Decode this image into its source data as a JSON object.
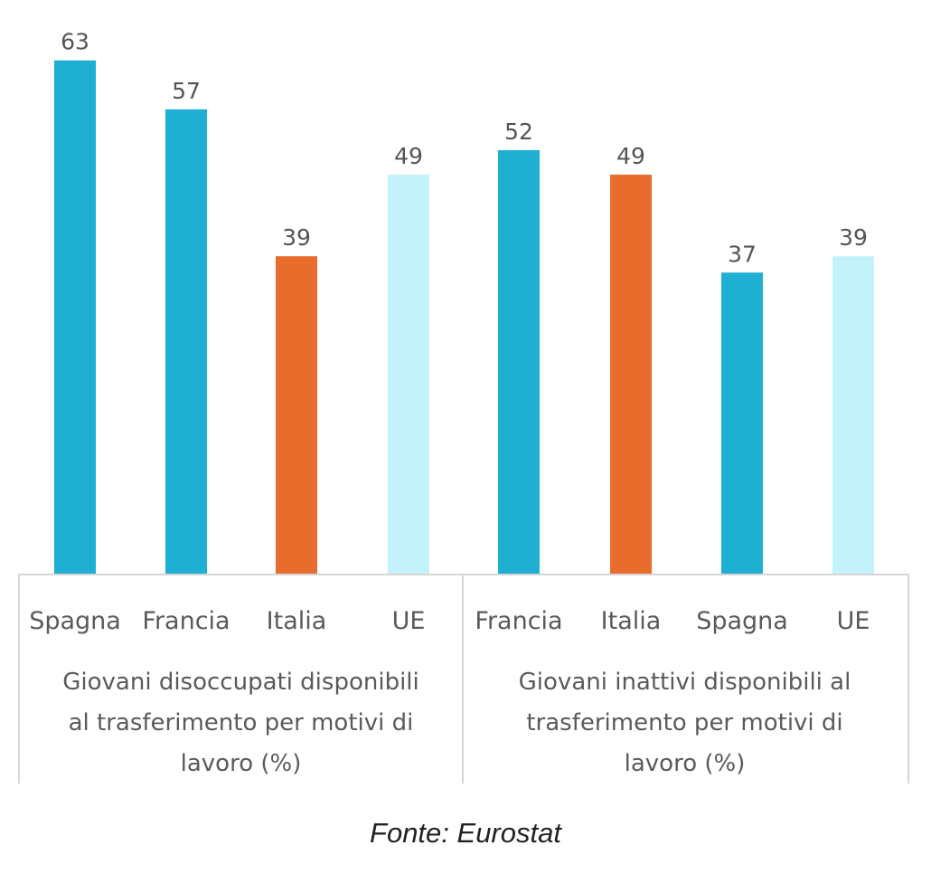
{
  "chart_data": {
    "type": "bar",
    "ylim": [
      0,
      70
    ],
    "grid": false,
    "groups": [
      {
        "label_lines": [
          "Giovani disoccupati disponibili",
          "al trasferimento per motivi di",
          "lavoro (%)"
        ],
        "categories": [
          "Spagna",
          "Francia",
          "Italia",
          "UE"
        ],
        "values": [
          63,
          57,
          39,
          49
        ],
        "colors": [
          "#1eafd3",
          "#1eafd3",
          "#e86c2c",
          "#c4f2fb"
        ]
      },
      {
        "label_lines": [
          "Giovani inattivi disponibili al",
          "trasferimento per motivi di",
          "lavoro (%)"
        ],
        "categories": [
          "Francia",
          "Italia",
          "Spagna",
          "UE"
        ],
        "values": [
          52,
          49,
          37,
          39
        ],
        "colors": [
          "#1eafd3",
          "#e86c2c",
          "#1eafd3",
          "#c4f2fb"
        ]
      }
    ]
  },
  "source": "Fonte: Eurostat"
}
